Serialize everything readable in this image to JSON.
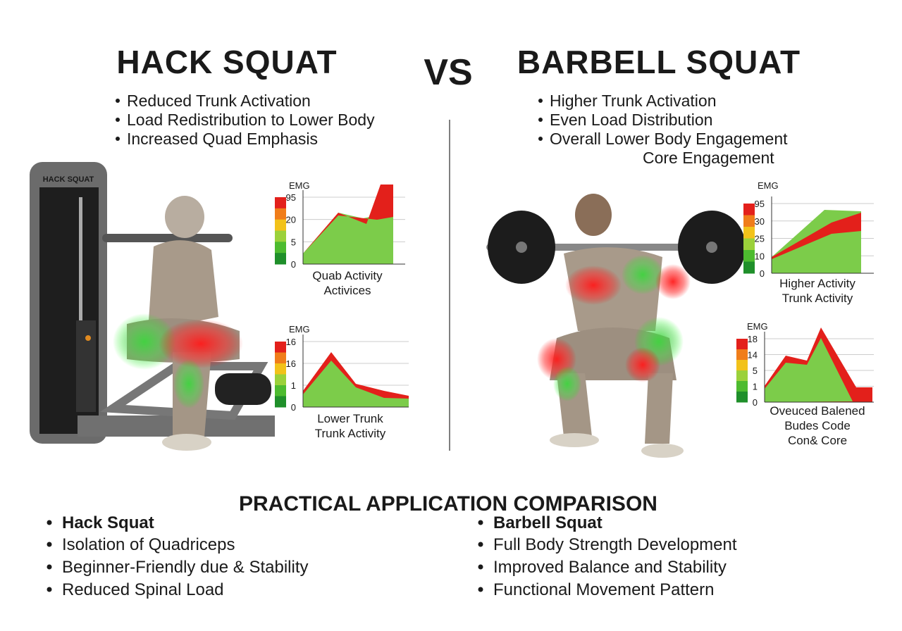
{
  "left": {
    "title": "HACK SQUAT",
    "bullets": [
      "Reduced Trunk Activation",
      "Load Redistribution to Lower Body",
      "Increased Quad Emphasis"
    ],
    "machine_label": "HACK SQUAT",
    "charts": [
      {
        "ylabel": "EMG",
        "yticks": [
          "95",
          "20",
          "5",
          "0"
        ],
        "caption": [
          "Quab Activity",
          "Activices"
        ]
      },
      {
        "ylabel": "EMG",
        "yticks": [
          "16",
          "16",
          "1",
          "0"
        ],
        "caption": [
          "Lower Trunk",
          "Trunk Activity"
        ]
      }
    ]
  },
  "vs": "VS",
  "right": {
    "title": "BARBELL SQUAT",
    "bullets": [
      "Higher Trunk Activation",
      "Even Load Distribution",
      "Overall Lower Body Engagement"
    ],
    "extra_line": "Core Engagement",
    "charts": [
      {
        "ylabel": "EMG",
        "yticks": [
          "95",
          "30",
          "25",
          "10",
          "0"
        ],
        "caption": [
          "Higher Activity",
          "Trunk Activity"
        ]
      },
      {
        "ylabel": "EMG",
        "yticks": [
          "18",
          "14",
          "5",
          "1",
          "0"
        ],
        "caption": [
          "Oveuced Balened",
          "Budes Code",
          "Con& Core"
        ]
      }
    ]
  },
  "practical": {
    "title": "PRACTICAL APPLICATION COMPARISON",
    "left": {
      "heading": "Hack Squat",
      "items": [
        "Isolation of Quadriceps",
        "Beginner-Friendly due & Stability",
        "Reduced Spinal Load"
      ]
    },
    "right": {
      "heading": "Barbell Squat",
      "items": [
        "Full Body Strength Development",
        "Improved Balance and Stability",
        "Functional Movement Pattern"
      ]
    }
  }
}
